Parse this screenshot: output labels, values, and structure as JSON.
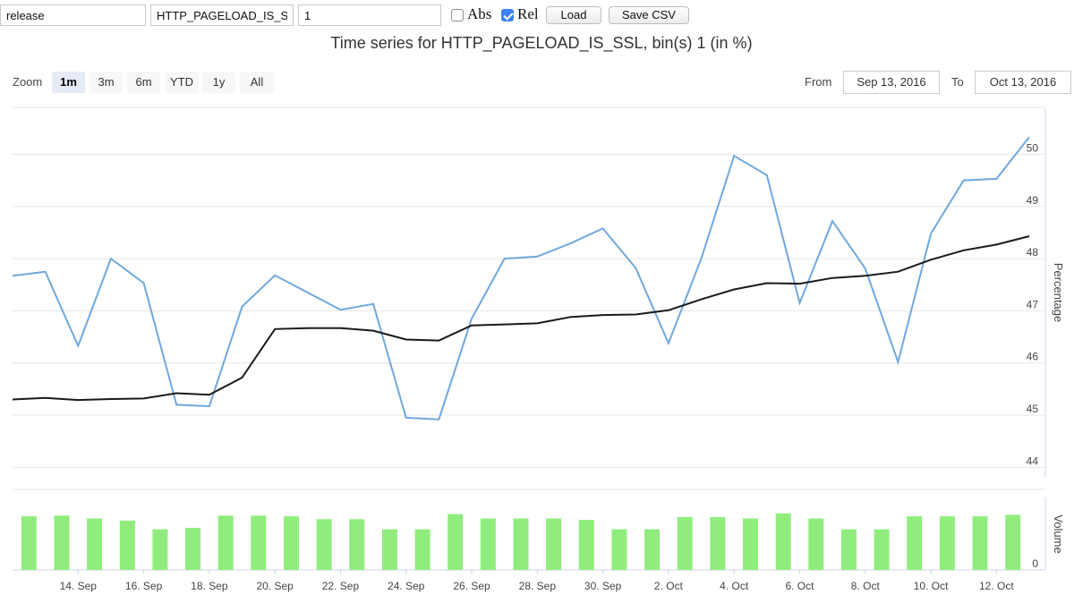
{
  "toolbar": {
    "channel_value": "release",
    "metric_value": "HTTP_PAGELOAD_IS_SSL",
    "bins_value": "1",
    "abs_label": "Abs",
    "abs_checked": false,
    "rel_label": "Rel",
    "rel_checked": true,
    "load_label": "Load",
    "save_csv_label": "Save CSV"
  },
  "range_selector": {
    "zoom_label": "Zoom",
    "buttons": [
      "1m",
      "3m",
      "6m",
      "YTD",
      "1y",
      "All"
    ],
    "active": "1m",
    "from_label": "From",
    "from_value": "Sep 13, 2016",
    "to_label": "To",
    "to_value": "Oct 13, 2016"
  },
  "colors": {
    "series_percentage": "#6fa8dc",
    "series_average": "#1a1a1a",
    "volume_bars": "#90ed7d"
  },
  "chart_data": {
    "type": "line",
    "title": "Time series for HTTP_PAGELOAD_IS_SSL, bin(s) 1 (in %)",
    "x": [
      "2016-09-12",
      "2016-09-13",
      "2016-09-14",
      "2016-09-15",
      "2016-09-16",
      "2016-09-17",
      "2016-09-18",
      "2016-09-19",
      "2016-09-20",
      "2016-09-21",
      "2016-09-22",
      "2016-09-23",
      "2016-09-24",
      "2016-09-25",
      "2016-09-26",
      "2016-09-27",
      "2016-09-28",
      "2016-09-29",
      "2016-09-30",
      "2016-10-01",
      "2016-10-02",
      "2016-10-03",
      "2016-10-04",
      "2016-10-05",
      "2016-10-06",
      "2016-10-07",
      "2016-10-08",
      "2016-10-09",
      "2016-10-10",
      "2016-10-11",
      "2016-10-12",
      "2016-10-13"
    ],
    "x_tick_labels": [
      "14. Sep",
      "16. Sep",
      "18. Sep",
      "20. Sep",
      "22. Sep",
      "24. Sep",
      "26. Sep",
      "28. Sep",
      "30. Sep",
      "2. Oct",
      "4. Oct",
      "6. Oct",
      "8. Oct",
      "10. Oct",
      "12. Oct"
    ],
    "x_tick_dates": [
      "2016-09-14",
      "2016-09-16",
      "2016-09-18",
      "2016-09-20",
      "2016-09-22",
      "2016-09-24",
      "2016-09-26",
      "2016-09-28",
      "2016-09-30",
      "2016-10-02",
      "2016-10-04",
      "2016-10-06",
      "2016-10-08",
      "2016-10-10",
      "2016-10-12"
    ],
    "series": [
      {
        "values": [
          47.67,
          47.75,
          46.33,
          48.0,
          47.53,
          45.2,
          45.17,
          47.08,
          47.68,
          47.35,
          47.02,
          47.13,
          44.95,
          44.92,
          46.85,
          48.0,
          48.04,
          48.29,
          48.58,
          47.82,
          46.38,
          48.0,
          49.97,
          49.6,
          47.15,
          48.72,
          47.81,
          46.02,
          48.48,
          49.5,
          49.53,
          50.33
        ]
      },
      {
        "values": [
          45.3,
          45.33,
          45.29,
          45.31,
          45.32,
          45.42,
          45.39,
          45.72,
          46.65,
          46.67,
          46.67,
          46.62,
          46.45,
          46.43,
          46.72,
          46.74,
          46.76,
          46.88,
          46.92,
          46.93,
          47.01,
          47.22,
          47.41,
          47.53,
          47.52,
          47.63,
          47.67,
          47.75,
          47.98,
          48.16,
          48.27,
          48.43
        ]
      }
    ],
    "ylabel": "Percentage",
    "yticks": [
      44,
      45,
      46,
      47,
      48,
      49,
      50
    ],
    "ylim": [
      43.8,
      50.9
    ],
    "grid": true,
    "volume": {
      "ylabel": "Volume",
      "ytick": "0",
      "values": [
        0.74,
        0.75,
        0.71,
        0.68,
        0.56,
        0.58,
        0.75,
        0.75,
        0.74,
        0.7,
        0.7,
        0.56,
        0.56,
        0.77,
        0.71,
        0.71,
        0.71,
        0.69,
        0.56,
        0.56,
        0.73,
        0.73,
        0.71,
        0.78,
        0.71,
        0.56,
        0.56,
        0.74,
        0.74,
        0.74,
        0.76
      ],
      "ylim": [
        0,
        1
      ]
    }
  }
}
